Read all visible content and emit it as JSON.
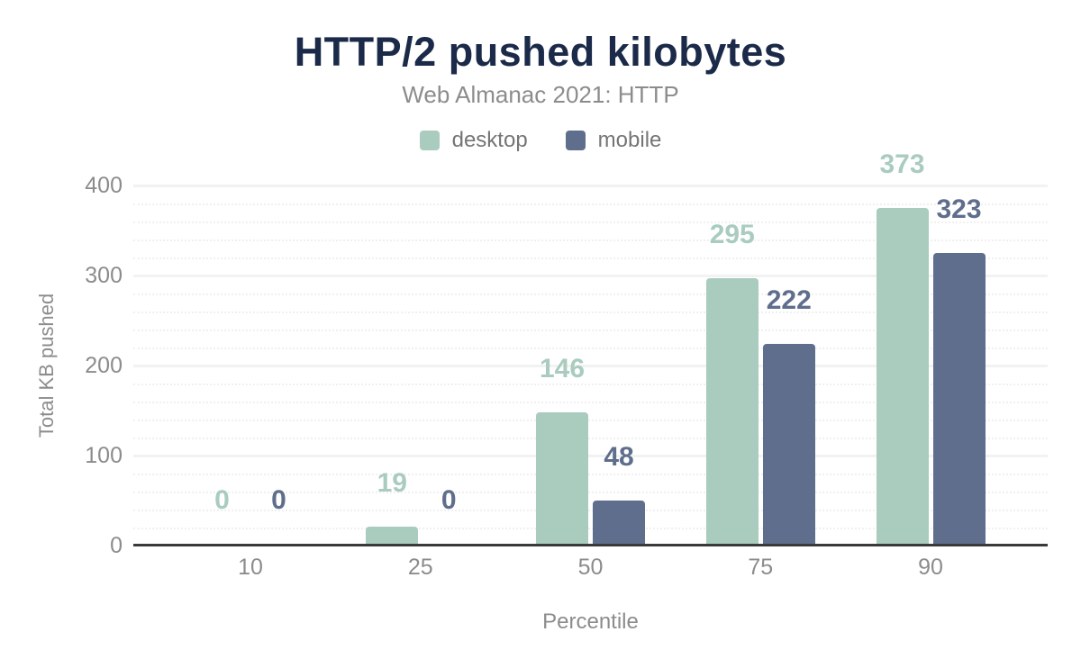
{
  "chart_data": {
    "type": "bar",
    "title": "HTTP/2 pushed kilobytes",
    "subtitle": "Web Almanac 2021: HTTP",
    "categories": [
      "10",
      "25",
      "50",
      "75",
      "90"
    ],
    "series": [
      {
        "name": "desktop",
        "color": "#a9ccbe",
        "values": [
          0,
          19,
          146,
          295,
          373
        ]
      },
      {
        "name": "mobile",
        "color": "#5f6e8c",
        "values": [
          0,
          0,
          48,
          222,
          323
        ]
      }
    ],
    "xlabel": "Percentile",
    "ylabel": "Total KB pushed",
    "ylim": [
      0,
      400
    ],
    "yticks": [
      0,
      100,
      200,
      300,
      400
    ],
    "minor_tick_step": 20,
    "grid": true,
    "legend_position": "top",
    "data_labels": true,
    "data_label_style": "series-color"
  },
  "colors": {
    "title": "#1b2a49",
    "subtitle": "#8c8c8c",
    "axis_line": "#3a3a3a",
    "tick_label": "#8c8c8c",
    "gridline_major": "#f2f2f2",
    "gridline_minor": "#f0f0f0",
    "background": "#ffffff"
  }
}
